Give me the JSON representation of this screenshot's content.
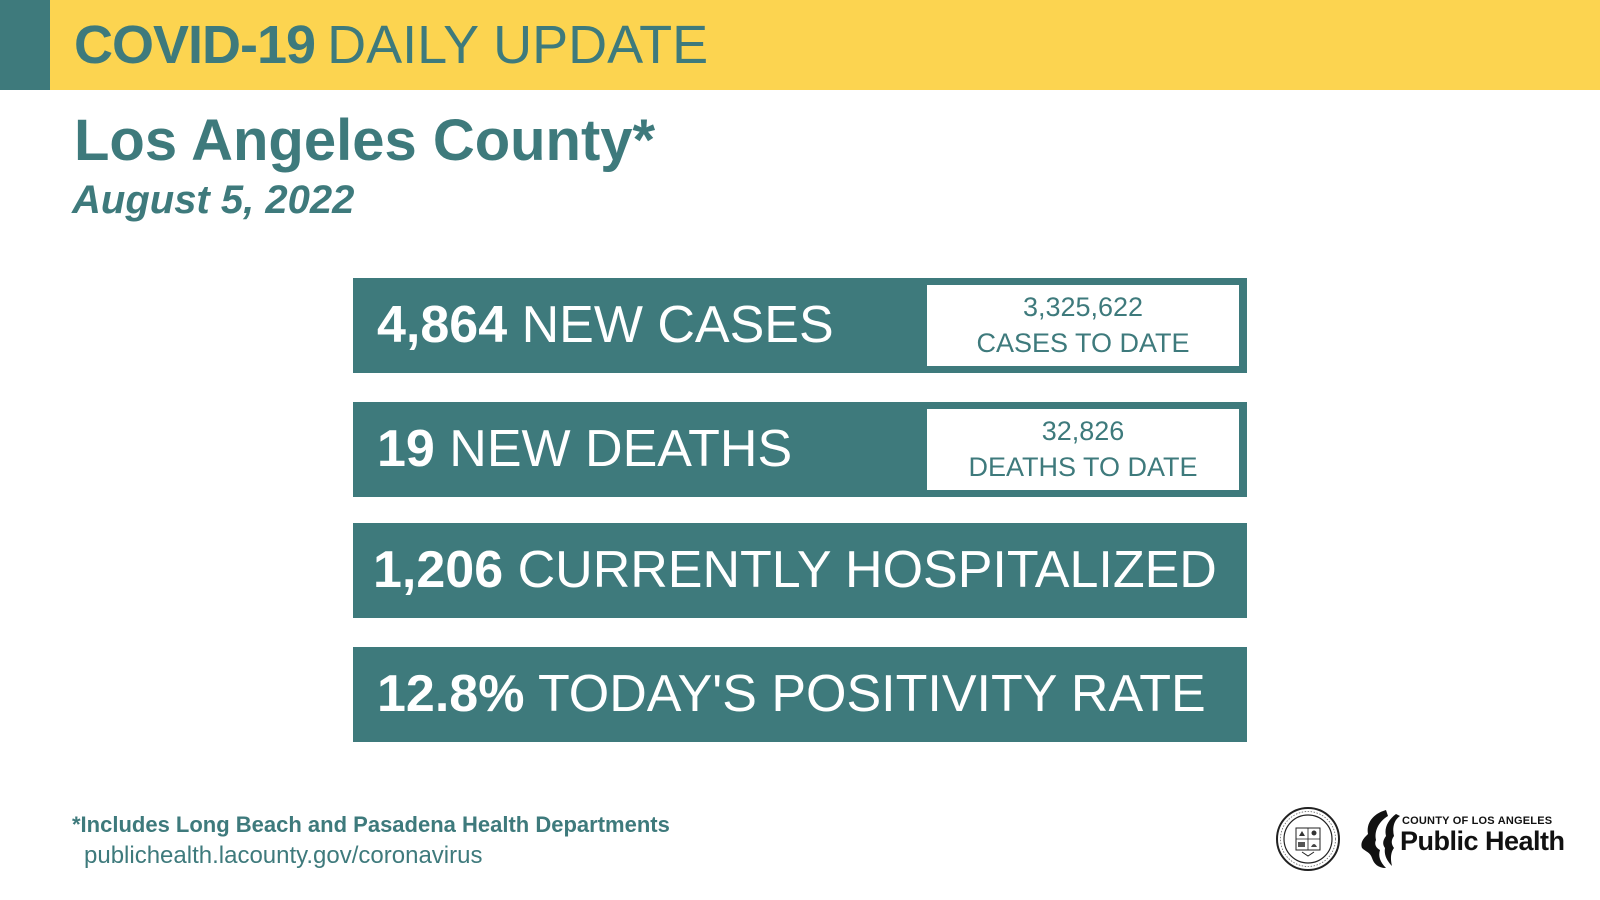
{
  "header": {
    "title_strong": "COVID-19",
    "title_light": "DAILY UPDATE"
  },
  "location": "Los Angeles County*",
  "date": "August 5, 2022",
  "stats": {
    "new_cases": {
      "number": "4,864",
      "label": "NEW CASES",
      "to_date_number": "3,325,622",
      "to_date_label": "CASES TO DATE"
    },
    "new_deaths": {
      "number": "19",
      "label": "NEW DEATHS",
      "to_date_number": "32,826",
      "to_date_label": "DEATHS TO DATE"
    },
    "hospitalized": {
      "number": "1,206",
      "label": "CURRENTLY HOSPITALIZED"
    },
    "positivity": {
      "number": "12.8%",
      "label": "TODAY'S POSITIVITY RATE"
    }
  },
  "footer": {
    "footnote": "*Includes Long Beach and Pasadena Health Departments",
    "url": "publichealth.lacounty.gov/coronavirus"
  },
  "logo": {
    "seal_name": "county-seal-icon",
    "small_text": "COUNTY OF LOS ANGELES",
    "big_text": "Public Health"
  },
  "colors": {
    "teal": "#3e7a7c",
    "yellow": "#fcd450",
    "white": "#ffffff"
  }
}
